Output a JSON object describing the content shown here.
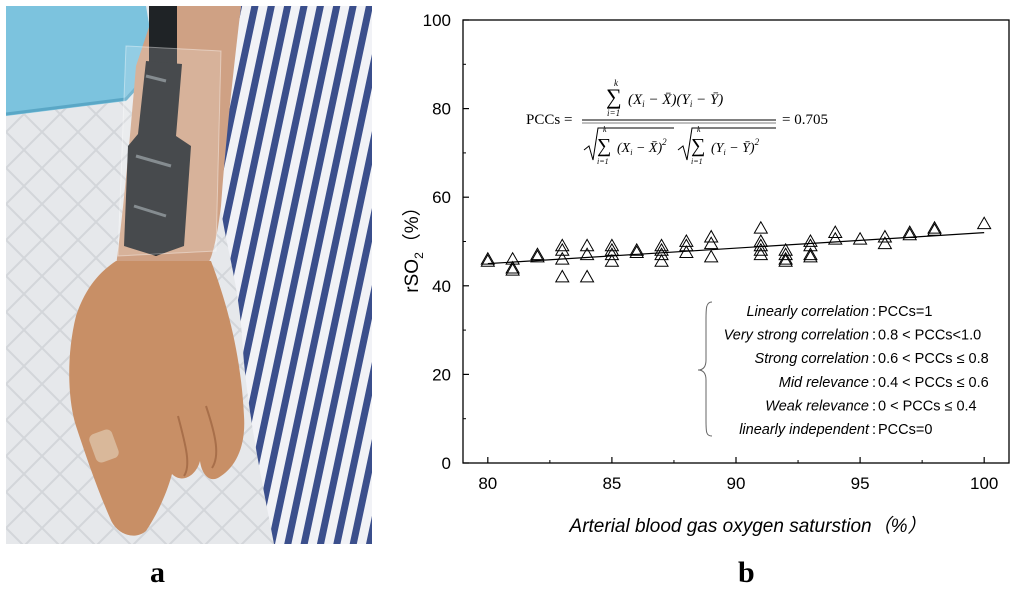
{
  "panel_labels": {
    "a": "a",
    "b": "b"
  },
  "photo": {
    "subject": "forearm with rSO2 sensor strip",
    "colors": {
      "drape_blue": "#7cc3de",
      "sheet_white": "#e9eaec",
      "skin": "#c88f66",
      "sensor": "#1f2326",
      "stripe_blue": "#3b4f8c",
      "gown_white": "#f1f2f6"
    }
  },
  "formula": {
    "lhs": "PCCs =",
    "numerator": "∑ (X_i − X̄)(Y_i − Ȳ)",
    "denominator": "√∑ (X_i − X̄)² √∑ (Y_i − Ȳ)²",
    "sum_upper": "k",
    "sum_lower": "i=1",
    "result": "= 0.705"
  },
  "legend": {
    "rows": [
      {
        "key": "Linearly correlation",
        "value": "PCCs=1"
      },
      {
        "key": "Very strong correlation",
        "value": "0.8 < PCCs<1.0"
      },
      {
        "key": "Strong correlation",
        "value": "0.6 < PCCs ≤ 0.8"
      },
      {
        "key": "Mid relevance",
        "value": "0.4 < PCCs ≤ 0.6"
      },
      {
        "key": "Weak relevance",
        "value": "0 < PCCs ≤ 0.4"
      },
      {
        "key": "linearly independent",
        "value": "PCCs=0"
      }
    ]
  },
  "chart_data": {
    "type": "scatter",
    "title": "",
    "xlabel": "Arterial blood gas oxygen saturstion（%）",
    "ylabel": "rSO2（%）",
    "ylabel_main": "rSO",
    "ylabel_sub": "2",
    "ylabel_unit": "（%）",
    "xlim": [
      79,
      101
    ],
    "ylim": [
      0,
      100
    ],
    "x_ticks": [
      80,
      85,
      90,
      95,
      100
    ],
    "y_ticks": [
      0,
      20,
      40,
      60,
      80,
      100
    ],
    "marker": "open-triangle",
    "grid": false,
    "points": [
      [
        80,
        46
      ],
      [
        80,
        45.5
      ],
      [
        81,
        46
      ],
      [
        81,
        44
      ],
      [
        81,
        43.5
      ],
      [
        82,
        47
      ],
      [
        82,
        46.5
      ],
      [
        83,
        49
      ],
      [
        83,
        48
      ],
      [
        83,
        46
      ],
      [
        83,
        42
      ],
      [
        84,
        49
      ],
      [
        84,
        47
      ],
      [
        84,
        42
      ],
      [
        85,
        49
      ],
      [
        85,
        48
      ],
      [
        85,
        47
      ],
      [
        85,
        45.5
      ],
      [
        86,
        48
      ],
      [
        86,
        47.5
      ],
      [
        87,
        49
      ],
      [
        87,
        48
      ],
      [
        87,
        47
      ],
      [
        87,
        45.5
      ],
      [
        88,
        50
      ],
      [
        88,
        49
      ],
      [
        88,
        47.5
      ],
      [
        89,
        51
      ],
      [
        89,
        49.5
      ],
      [
        89,
        46.5
      ],
      [
        91,
        53
      ],
      [
        91,
        50
      ],
      [
        91,
        49
      ],
      [
        91,
        48
      ],
      [
        91,
        47
      ],
      [
        92,
        48
      ],
      [
        92,
        47
      ],
      [
        92,
        46
      ],
      [
        92,
        45.5
      ],
      [
        93,
        50
      ],
      [
        93,
        49
      ],
      [
        93,
        47
      ],
      [
        93,
        46.5
      ],
      [
        94,
        52
      ],
      [
        94,
        50.5
      ],
      [
        95,
        50.5
      ],
      [
        96,
        51
      ],
      [
        96,
        49.5
      ],
      [
        97,
        52
      ],
      [
        97,
        51.5
      ],
      [
        98,
        53
      ],
      [
        98,
        52.5
      ],
      [
        100,
        54
      ]
    ],
    "fit_line": {
      "x": [
        80,
        100
      ],
      "y": [
        45,
        52
      ]
    }
  }
}
